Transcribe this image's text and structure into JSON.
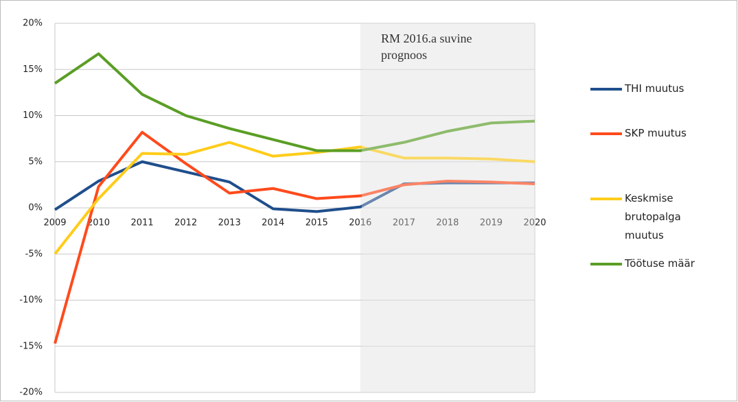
{
  "chart_data": {
    "type": "line",
    "annotation": "RM 2016.a suvine prognoos",
    "categories": [
      "2009",
      "2010",
      "2011",
      "2012",
      "2013",
      "2014",
      "2015",
      "2016",
      "2017",
      "2018",
      "2019",
      "2020"
    ],
    "forecast_from": "2016",
    "series": [
      {
        "name": "THI muutus",
        "color": "#1f4e8c",
        "values": [
          -0.2,
          2.9,
          5.0,
          3.9,
          2.8,
          -0.1,
          -0.4,
          0.1,
          2.6,
          2.7,
          2.7,
          2.7
        ]
      },
      {
        "name": "SKP muutus",
        "color": "#ff4a1c",
        "values": [
          -14.7,
          2.3,
          8.2,
          4.8,
          1.6,
          2.1,
          1.0,
          1.3,
          2.5,
          2.9,
          2.8,
          2.6
        ]
      },
      {
        "name": "Keskmise brutopalga muutus",
        "color": "#ffcc1a",
        "values": [
          -5.0,
          1.0,
          5.9,
          5.8,
          7.1,
          5.6,
          6.0,
          6.6,
          5.4,
          5.4,
          5.3,
          5.0
        ]
      },
      {
        "name": "Töötuse määr",
        "color": "#5a9e25",
        "values": [
          13.5,
          16.7,
          12.3,
          10.0,
          8.6,
          7.4,
          6.2,
          6.2,
          7.1,
          8.3,
          9.2,
          9.4
        ]
      }
    ],
    "ylim": [
      -20,
      20
    ],
    "yticks": [
      {
        "value": -20,
        "label": "-20%"
      },
      {
        "value": -15,
        "label": "-15%"
      },
      {
        "value": -10,
        "label": "-10%"
      },
      {
        "value": -5,
        "label": "-5%"
      },
      {
        "value": 0,
        "label": "0%"
      },
      {
        "value": 5,
        "label": "5%"
      },
      {
        "value": 10,
        "label": "10%"
      },
      {
        "value": 15,
        "label": "15%"
      },
      {
        "value": 20,
        "label": "20%"
      }
    ],
    "grid": true,
    "legend": "right"
  }
}
